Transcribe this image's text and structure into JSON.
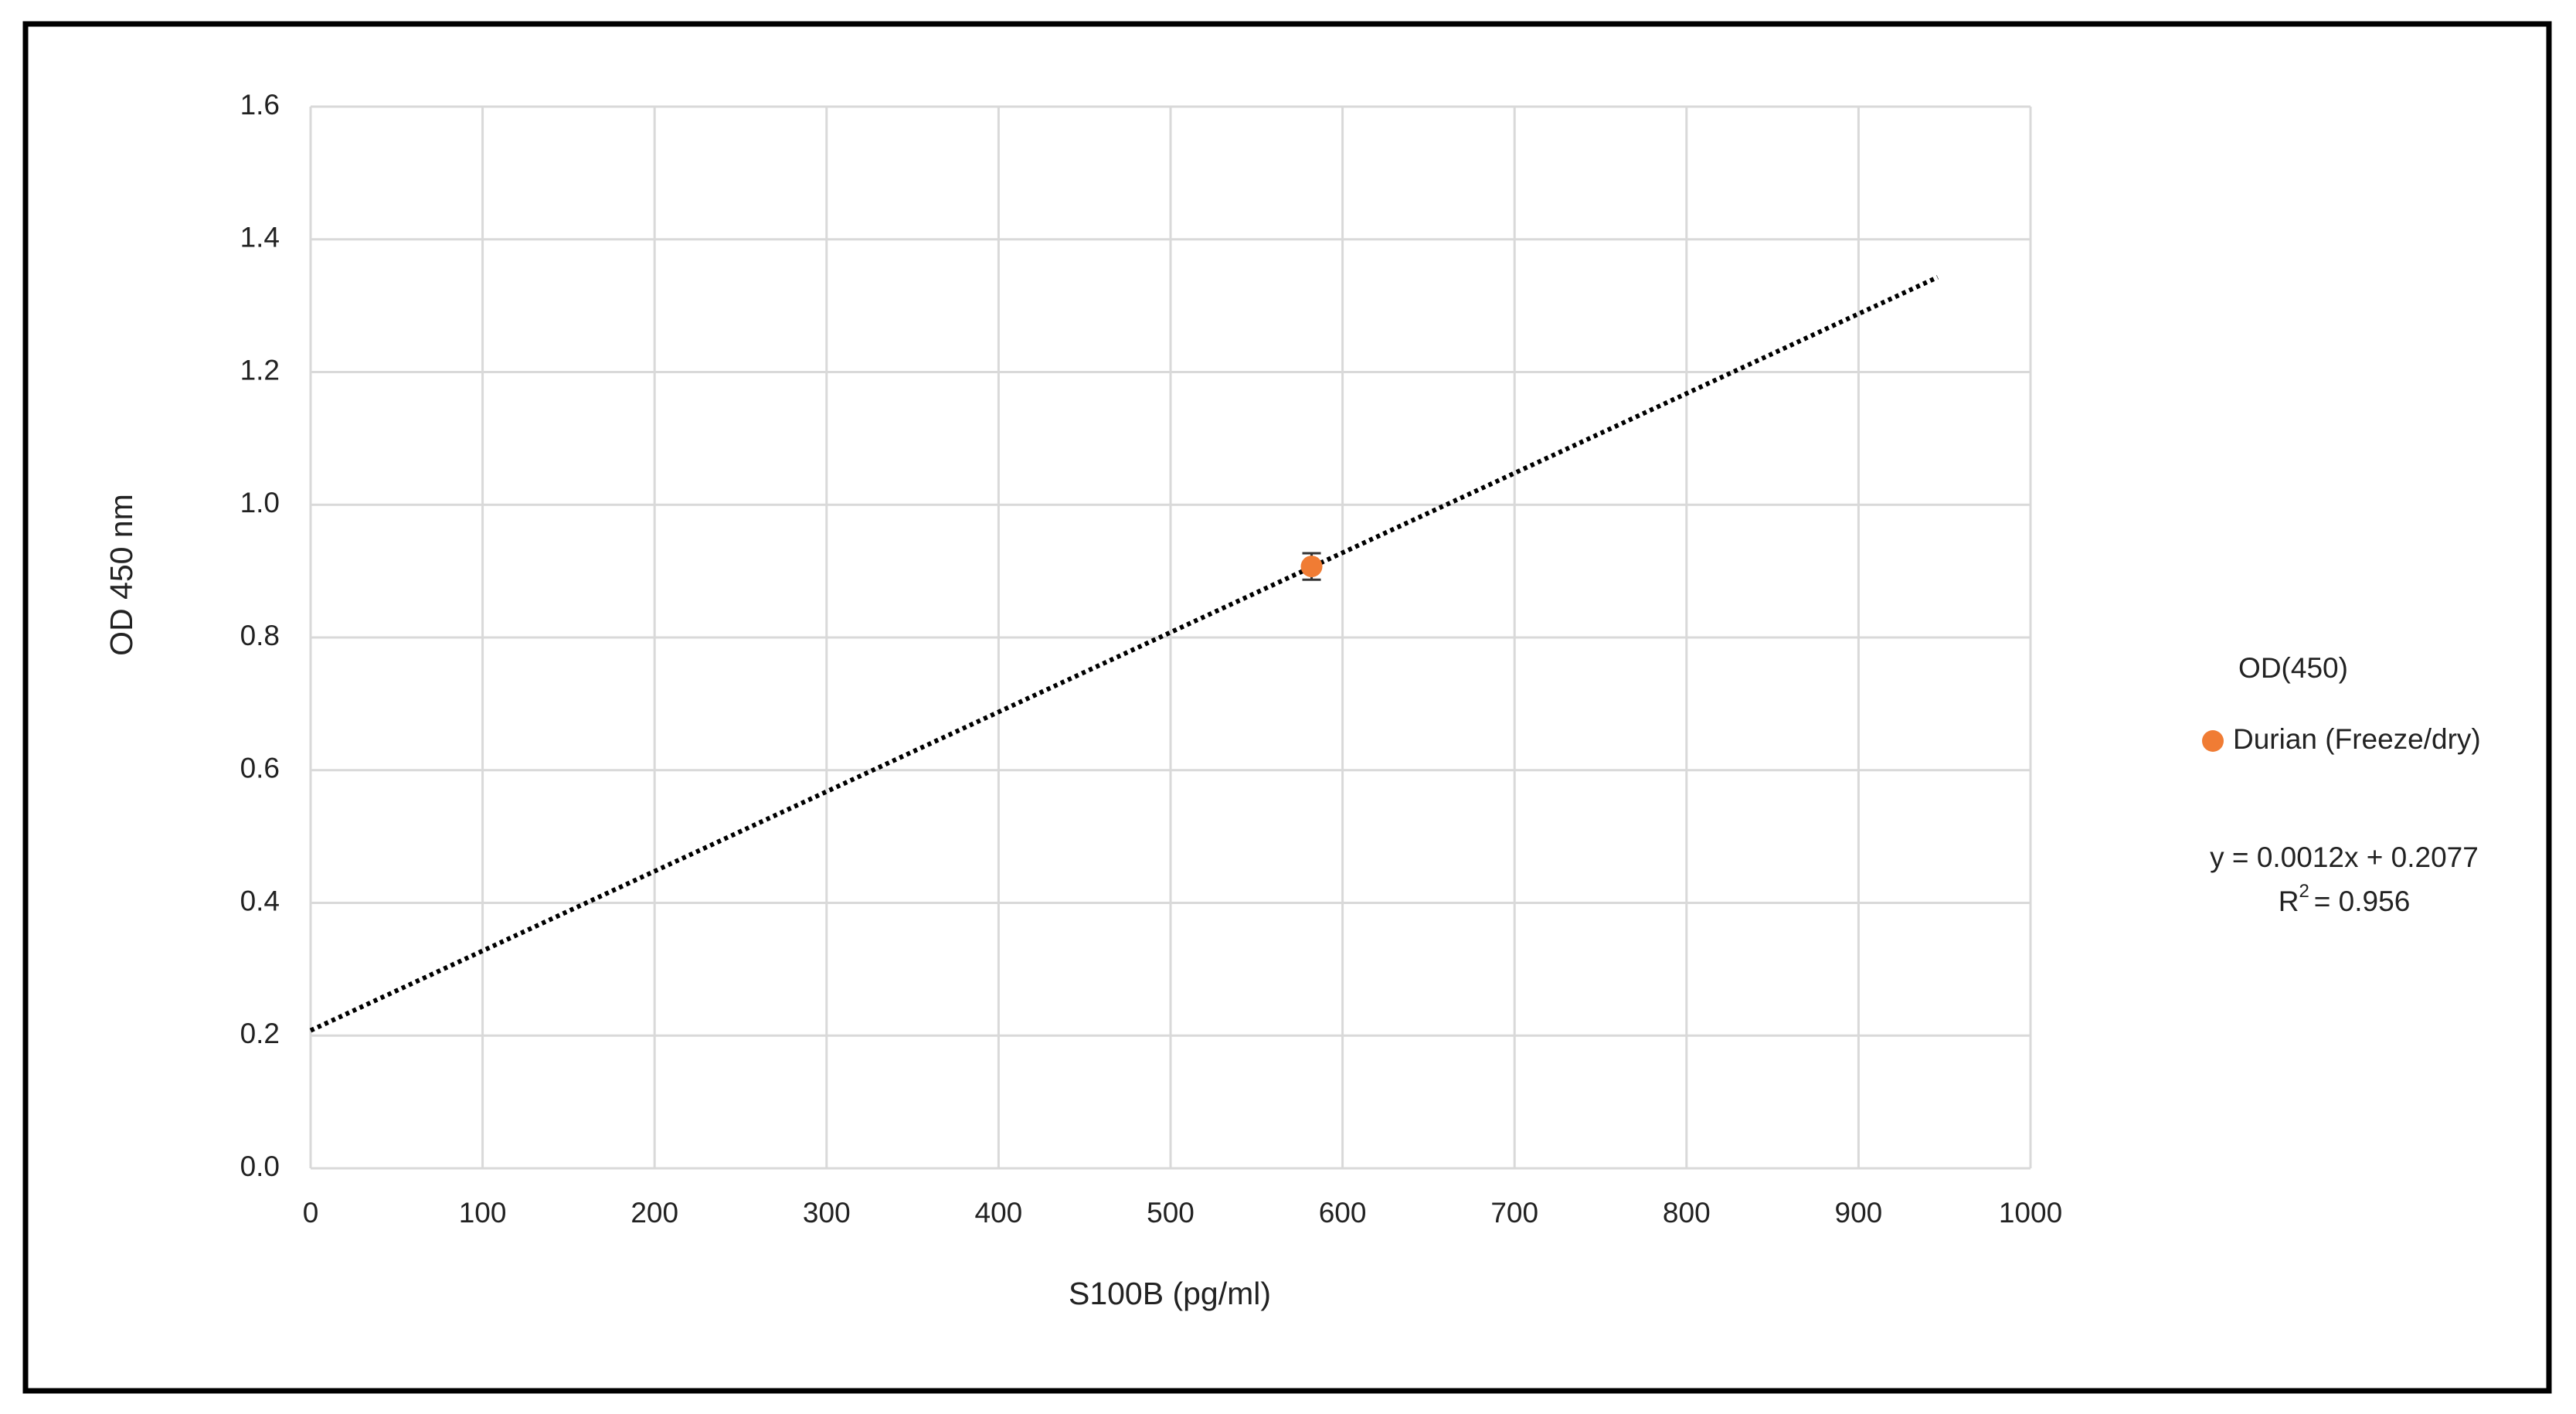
{
  "chart_data": {
    "type": "scatter",
    "xlabel": "S100B (pg/ml)",
    "ylabel": "OD 450 nm",
    "legend_title": "OD(450)",
    "series": [
      {
        "name": "Durian (Freeze/dry)",
        "color": "#f07c34",
        "x": [
          582
        ],
        "values": [
          0.907
        ],
        "errors": [
          0.02
        ]
      }
    ],
    "trendline": {
      "x": [
        0,
        946
      ],
      "values": [
        0.2077,
        1.3429
      ],
      "color": "#000000",
      "style": "dotted",
      "equation": "y = 0.0012x + 0.2077",
      "r_squared_label": "R",
      "r_squared_power": "2",
      "r_squared_value": "= 0.956"
    },
    "xlim": [
      0,
      1000
    ],
    "xticks": [
      0,
      100,
      200,
      300,
      400,
      500,
      600,
      700,
      800,
      900,
      1000
    ],
    "ylim": [
      0,
      1.6
    ],
    "yticks": [
      {
        "value": 0,
        "label": "0.0"
      },
      {
        "value": 0.2,
        "label": "0.2"
      },
      {
        "value": 0.4,
        "label": "0.4"
      },
      {
        "value": 0.6,
        "label": "0.6"
      },
      {
        "value": 0.8,
        "label": "0.8"
      },
      {
        "value": 1,
        "label": "1.0"
      },
      {
        "value": 1.2,
        "label": "1.2"
      },
      {
        "value": 1.4,
        "label": "1.4"
      },
      {
        "value": 1.6,
        "label": "1.6"
      }
    ],
    "grid": true,
    "legend": "right"
  }
}
